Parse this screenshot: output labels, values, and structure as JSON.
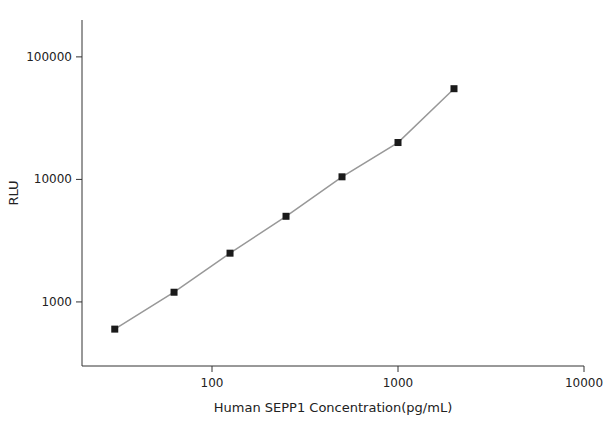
{
  "chart_data": {
    "type": "line",
    "xlabel": "Human SEPP1 Concentration(pg/mL)",
    "ylabel": "RLU",
    "x": [
      30,
      62.5,
      125,
      250,
      500,
      1000,
      2000
    ],
    "values": [
      600,
      1200,
      2500,
      5000,
      10500,
      20000,
      55000
    ],
    "color": "#1a1a1a",
    "marker": "square",
    "line_style": "solid",
    "log": true,
    "grid": false,
    "xlim": [
      20,
      10000
    ],
    "ylim": [
      300,
      200000
    ],
    "xticks": [
      100,
      1000,
      10000
    ],
    "yticks": [
      1000,
      10000,
      100000
    ]
  }
}
